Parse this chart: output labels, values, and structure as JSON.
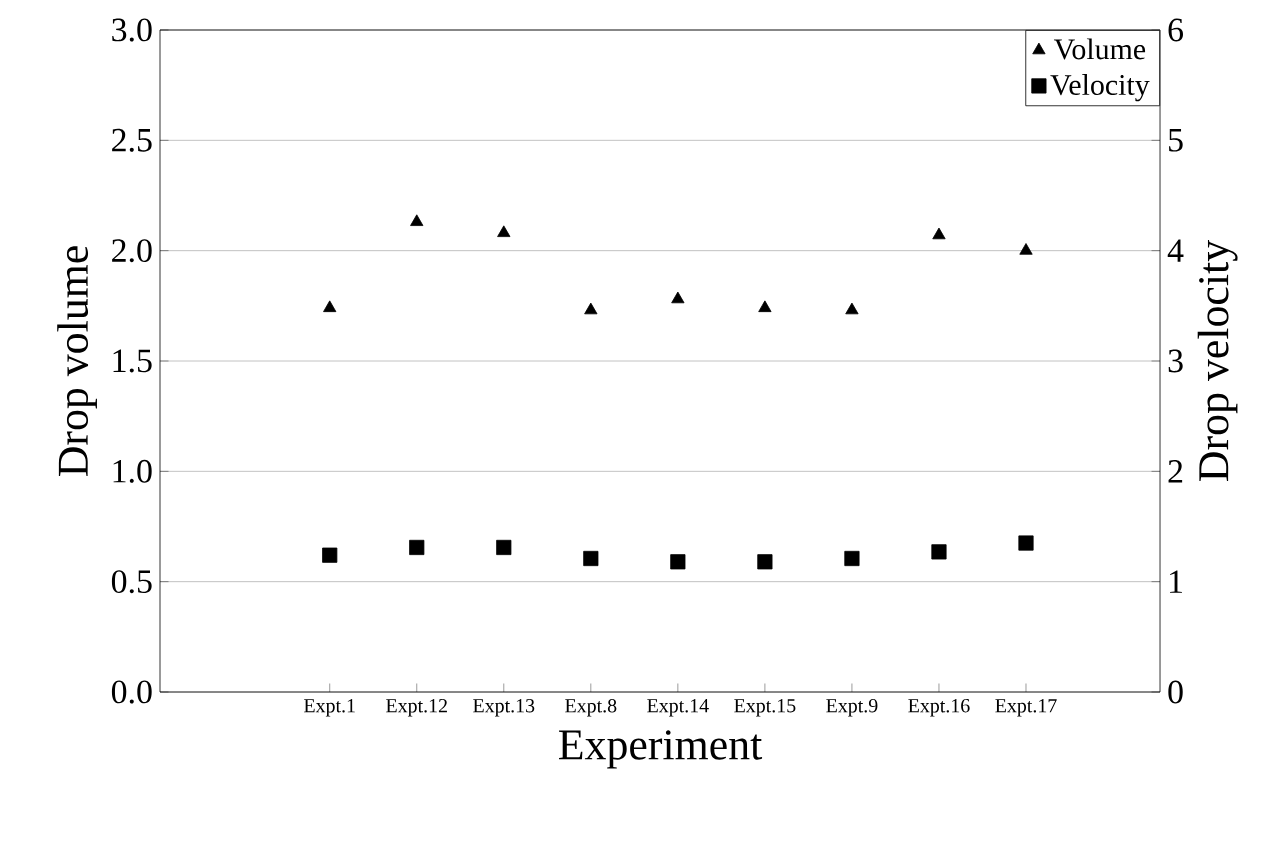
{
  "chart_data": {
    "type": "scatter",
    "xlabel": "Experiment",
    "ylabel": "Drop volume",
    "y2label": "Drop velocity",
    "categories": [
      "Expt.1",
      "Expt.12",
      "Expt.13",
      "Expt.8",
      "Expt.14",
      "Expt.15",
      "Expt.9",
      "Expt.16",
      "Expt.17"
    ],
    "series": [
      {
        "name": "Volume",
        "color": "#000000",
        "marker": "triangle",
        "values": [
          1.74,
          2.13,
          2.08,
          1.73,
          1.78,
          1.74,
          1.73,
          2.07,
          2.0
        ]
      },
      {
        "name": "Velocity",
        "color": "#000000",
        "marker": "square",
        "axis": "y2",
        "values": [
          1.24,
          1.31,
          1.31,
          1.21,
          1.18,
          1.18,
          1.21,
          1.27,
          1.35
        ]
      }
    ],
    "ylim": [
      0,
      3
    ],
    "yticks": [
      {
        "value": 0,
        "label": "0.0"
      },
      {
        "value": 0.5,
        "label": "0.5"
      },
      {
        "value": 1,
        "label": "1.0"
      },
      {
        "value": 1.5,
        "label": "1.5"
      },
      {
        "value": 2,
        "label": "2.0"
      },
      {
        "value": 2.5,
        "label": "2.5"
      },
      {
        "value": 3,
        "label": "3.0"
      }
    ],
    "y2lim": [
      0,
      6
    ],
    "y2ticks": [
      0,
      1,
      2,
      3,
      4,
      5,
      6
    ],
    "grid": "y",
    "legend": "top right"
  }
}
